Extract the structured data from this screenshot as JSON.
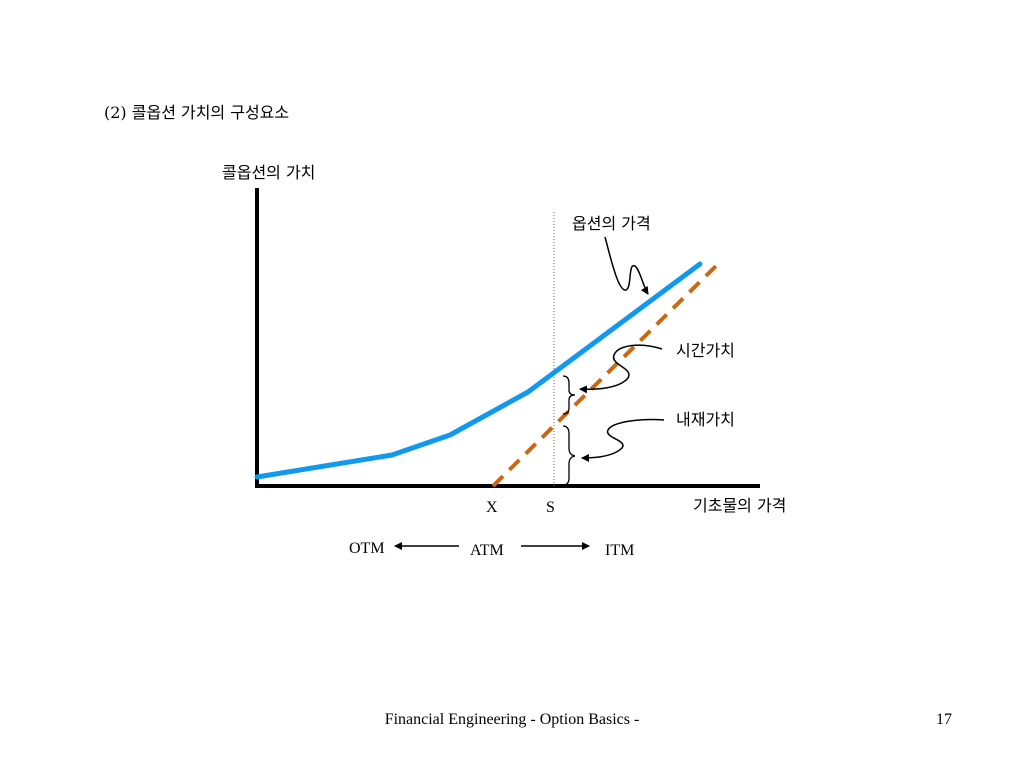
{
  "slide": {
    "heading": "(2) 콜옵션 가치의 구성요소",
    "footer_title": "Financial Engineering - Option Basics -",
    "page_number": "17"
  },
  "diagram": {
    "y_axis_label": "콜옵션의 가치",
    "x_axis_label": "기초물의 가격",
    "tick_x": "X",
    "tick_s": "S",
    "option_price_label": "옵션의 가격",
    "time_value_label": "시간가치",
    "intrinsic_value_label": "내재가치",
    "moneyness": {
      "otm": "OTM",
      "atm": "ATM",
      "itm": "ITM"
    },
    "colors": {
      "option_value_curve": "#1199ee",
      "intrinsic_value_line": "#cc6611",
      "axes": "#000000"
    }
  }
}
